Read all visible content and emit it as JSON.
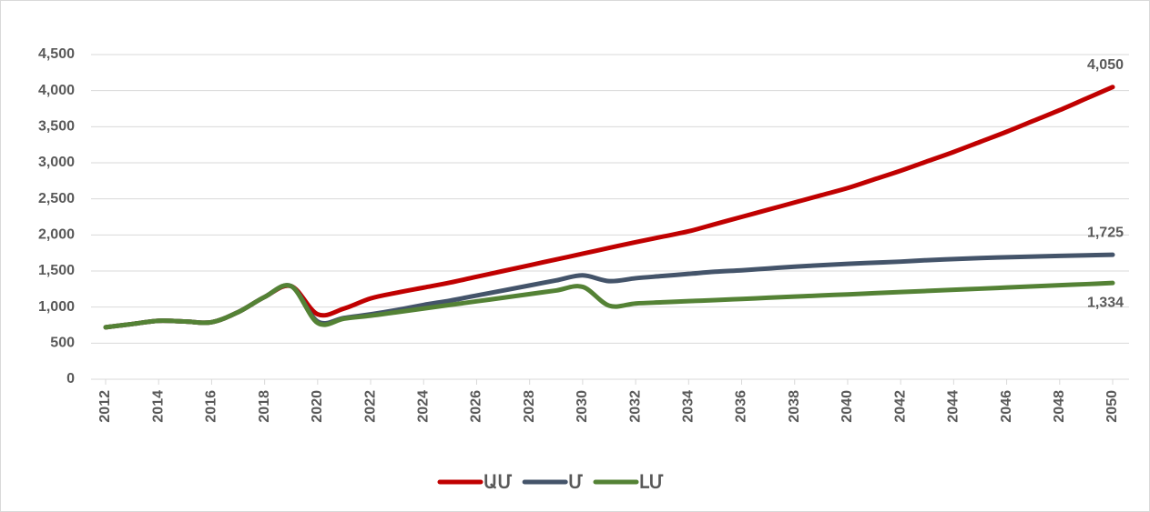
{
  "chart_data": {
    "type": "line",
    "x": [
      2012,
      2013,
      2014,
      2015,
      2016,
      2017,
      2018,
      2019,
      2020,
      2021,
      2022,
      2023,
      2024,
      2025,
      2026,
      2027,
      2028,
      2029,
      2030,
      2031,
      2032,
      2033,
      2034,
      2035,
      2036,
      2037,
      2038,
      2039,
      2040,
      2041,
      2042,
      2043,
      2044,
      2045,
      2046,
      2047,
      2048,
      2049,
      2050
    ],
    "series": [
      {
        "name": "ԱՄ",
        "color": "#c00000",
        "values": [
          720,
          765,
          810,
          800,
          790,
          930,
          1140,
          1290,
          900,
          980,
          1120,
          1200,
          1270,
          1340,
          1420,
          1500,
          1580,
          1660,
          1740,
          1820,
          1900,
          1975,
          2050,
          2150,
          2250,
          2350,
          2450,
          2550,
          2650,
          2770,
          2890,
          3020,
          3150,
          3290,
          3430,
          3580,
          3730,
          3890,
          4050
        ],
        "value_labels": {
          "38": "4,050"
        }
      },
      {
        "name": "Մ",
        "color": "#44546a",
        "values": [
          720,
          765,
          810,
          800,
          790,
          930,
          1140,
          1290,
          800,
          850,
          900,
          960,
          1030,
          1090,
          1160,
          1230,
          1300,
          1370,
          1440,
          1360,
          1400,
          1430,
          1460,
          1490,
          1510,
          1535,
          1560,
          1580,
          1600,
          1615,
          1630,
          1650,
          1665,
          1680,
          1690,
          1700,
          1710,
          1718,
          1725
        ],
        "value_labels": {
          "38": "1,725"
        }
      },
      {
        "name": "ԼՄ",
        "color": "#548235",
        "values": [
          720,
          765,
          810,
          800,
          790,
          930,
          1140,
          1290,
          780,
          840,
          880,
          930,
          980,
          1030,
          1080,
          1130,
          1180,
          1230,
          1280,
          1020,
          1050,
          1066,
          1082,
          1097,
          1113,
          1129,
          1145,
          1161,
          1176,
          1192,
          1208,
          1224,
          1240,
          1255,
          1271,
          1287,
          1303,
          1318,
          1334
        ],
        "value_labels": {
          "38": "1,334"
        }
      }
    ],
    "xlim": [
      2012,
      2050
    ],
    "xticks": [
      2012,
      2014,
      2016,
      2018,
      2020,
      2022,
      2024,
      2026,
      2028,
      2030,
      2032,
      2034,
      2036,
      2038,
      2040,
      2042,
      2044,
      2046,
      2048,
      2050
    ],
    "ylim": [
      0,
      4500
    ],
    "yticks": [
      0,
      500,
      {
        "value": 1000,
        "label": "1,000"
      },
      {
        "value": 1500,
        "label": "1,500"
      },
      {
        "value": 2000,
        "label": "2,000"
      },
      {
        "value": 2500,
        "label": "2,500"
      },
      {
        "value": 3000,
        "label": "3,000"
      },
      {
        "value": 3500,
        "label": "3,500"
      },
      {
        "value": 4000,
        "label": "4,000"
      },
      {
        "value": 4500,
        "label": "4,500"
      }
    ],
    "grid": true,
    "legend": "bottom"
  }
}
